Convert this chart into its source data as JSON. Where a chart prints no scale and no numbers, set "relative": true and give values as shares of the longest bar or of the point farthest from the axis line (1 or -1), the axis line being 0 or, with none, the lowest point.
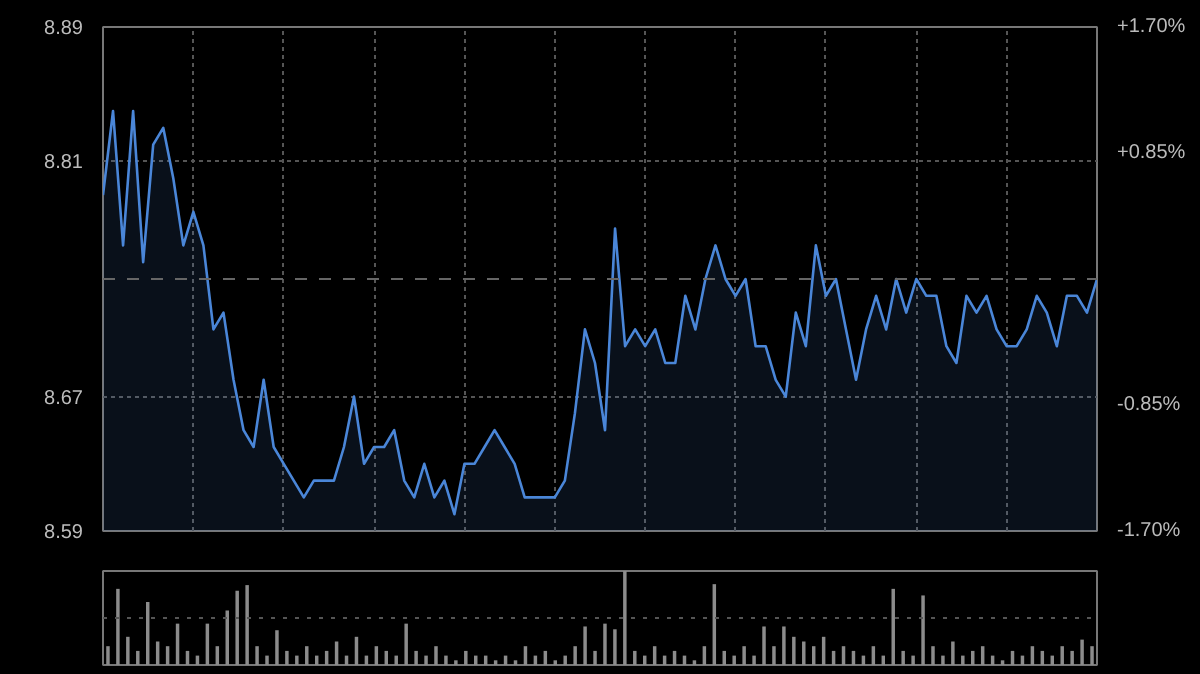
{
  "chart_data": [
    {
      "type": "area",
      "categories": [
        null,
        null,
        null,
        null,
        null,
        null,
        null,
        null,
        null,
        null,
        null,
        null,
        null,
        null,
        null,
        null,
        null,
        null,
        null,
        null,
        null,
        null,
        null,
        null,
        null,
        null,
        null,
        null,
        null,
        null,
        null,
        null,
        null,
        null,
        null,
        null,
        null,
        null,
        null,
        null,
        null,
        null,
        null,
        null,
        null,
        null,
        null,
        null,
        null,
        null,
        null,
        null,
        null,
        null,
        null,
        null,
        null,
        null,
        null,
        null,
        null,
        null,
        null,
        null,
        null,
        null,
        null,
        null,
        null,
        null,
        null,
        null,
        null,
        null,
        null,
        null,
        null,
        null,
        null,
        null,
        null,
        null,
        null,
        null,
        null,
        null,
        null,
        null,
        null,
        null,
        null,
        null,
        null,
        null,
        null,
        null,
        null,
        null,
        null,
        null
      ],
      "series": [
        {
          "color": "#4a86d8",
          "values": [
            8.79,
            8.84,
            8.76,
            8.84,
            8.75,
            8.82,
            8.83,
            8.8,
            8.76,
            8.78,
            8.76,
            8.71,
            8.72,
            8.68,
            8.65,
            8.64,
            8.68,
            8.64,
            8.63,
            8.62,
            8.61,
            8.62,
            8.62,
            8.62,
            8.64,
            8.67,
            8.63,
            8.64,
            8.64,
            8.65,
            8.62,
            8.61,
            8.63,
            8.61,
            8.62,
            8.6,
            8.63,
            8.63,
            8.64,
            8.65,
            8.64,
            8.63,
            8.61,
            8.61,
            8.61,
            8.61,
            8.62,
            8.66,
            8.71,
            8.69,
            8.65,
            8.77,
            8.7,
            8.71,
            8.7,
            8.71,
            8.69,
            8.69,
            8.73,
            8.71,
            8.74,
            8.76,
            8.74,
            8.73,
            8.74,
            8.7,
            8.7,
            8.68,
            8.67,
            8.72,
            8.7,
            8.76,
            8.73,
            8.74,
            8.71,
            8.68,
            8.71,
            8.73,
            8.71,
            8.74,
            8.72,
            8.74,
            8.73,
            8.73,
            8.7,
            8.69,
            8.73,
            8.72,
            8.73,
            8.71,
            8.7,
            8.7,
            8.71,
            8.73,
            8.72,
            8.7,
            8.73,
            8.73,
            8.72,
            8.74
          ]
        }
      ],
      "ylim": [
        8.59,
        8.89
      ],
      "yticks": [
        8.59,
        8.67,
        8.81,
        8.89
      ],
      "y2lim": [
        -1.7,
        1.7
      ],
      "y2ticks": [
        {
          "value": -1.7,
          "label": "-1.70%"
        },
        {
          "value": -0.85,
          "label": "-0.85%"
        },
        {
          "value": 0.85,
          "label": "+0.85%"
        },
        {
          "value": 1.7,
          "label": "+1.70%"
        }
      ],
      "ref_lines": [
        {
          "axis": "y",
          "value": 8.74,
          "label": null,
          "color": "#666666",
          "line_style": "dashed"
        }
      ],
      "grid": true,
      "tick_labels": "y"
    },
    {
      "type": "bar",
      "relative": true,
      "categories": [
        null,
        null,
        null,
        null,
        null,
        null,
        null,
        null,
        null,
        null,
        null,
        null,
        null,
        null,
        null,
        null,
        null,
        null,
        null,
        null,
        null,
        null,
        null,
        null,
        null,
        null,
        null,
        null,
        null,
        null,
        null,
        null,
        null,
        null,
        null,
        null,
        null,
        null,
        null,
        null,
        null,
        null,
        null,
        null,
        null,
        null,
        null,
        null,
        null,
        null,
        null,
        null,
        null,
        null,
        null,
        null,
        null,
        null,
        null,
        null,
        null,
        null,
        null,
        null,
        null,
        null,
        null,
        null,
        null,
        null,
        null,
        null,
        null,
        null,
        null,
        null,
        null,
        null,
        null,
        null,
        null,
        null,
        null,
        null,
        null,
        null,
        null,
        null,
        null,
        null,
        null,
        null,
        null,
        null,
        null,
        null,
        null,
        null,
        null,
        null
      ],
      "series": [
        {
          "color": "#8c8c8c",
          "values": [
            0.2,
            0.81,
            0.3,
            0.15,
            0.67,
            0.25,
            0.2,
            0.44,
            0.15,
            0.1,
            0.44,
            0.2,
            0.58,
            0.79,
            0.85,
            0.2,
            0.1,
            0.37,
            0.15,
            0.1,
            0.2,
            0.1,
            0.15,
            0.25,
            0.1,
            0.3,
            0.1,
            0.2,
            0.15,
            0.1,
            0.44,
            0.15,
            0.1,
            0.2,
            0.1,
            0.05,
            0.15,
            0.1,
            0.1,
            0.05,
            0.1,
            0.05,
            0.2,
            0.1,
            0.15,
            0.05,
            0.1,
            0.2,
            0.41,
            0.15,
            0.44,
            0.38,
            1.0,
            0.15,
            0.1,
            0.2,
            0.1,
            0.15,
            0.1,
            0.05,
            0.2,
            0.86,
            0.15,
            0.1,
            0.2,
            0.1,
            0.41,
            0.2,
            0.41,
            0.3,
            0.25,
            0.2,
            0.3,
            0.15,
            0.2,
            0.15,
            0.1,
            0.2,
            0.1,
            0.81,
            0.15,
            0.1,
            0.74,
            0.2,
            0.1,
            0.25,
            0.1,
            0.15,
            0.2,
            0.1,
            0.05,
            0.15,
            0.1,
            0.2,
            0.15,
            0.1,
            0.2,
            0.15,
            0.27,
            0.2
          ]
        }
      ],
      "ref_lines": [
        {
          "axis": "y",
          "value": 0.5,
          "label": null,
          "color": "#555555",
          "line_style": "dotted"
        }
      ],
      "tick_labels": false
    }
  ]
}
